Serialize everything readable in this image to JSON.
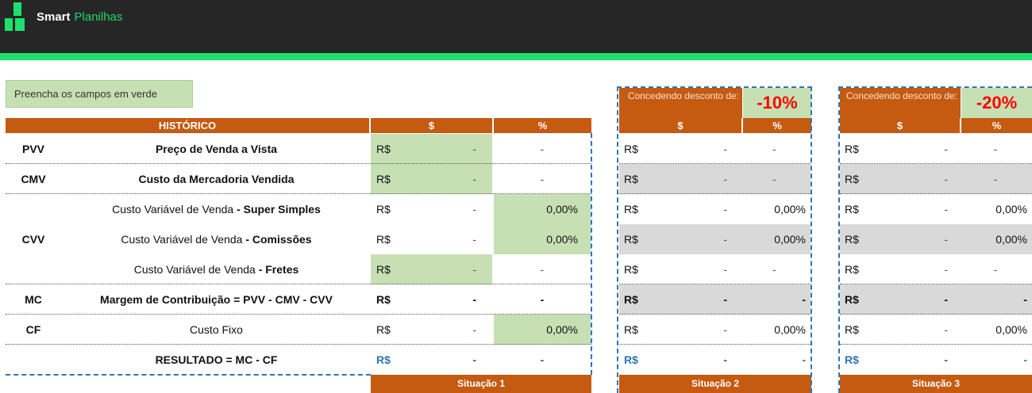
{
  "brand": {
    "name_bold": "Smart",
    "name_light": "Planilhas"
  },
  "hint": "Preencha os campos em verde",
  "history_header": {
    "title": "HISTÓRICO",
    "money": "$",
    "pct": "%"
  },
  "discounts": [
    {
      "label": "Concedendo desconto de:",
      "value": "-10%",
      "money": "$",
      "pct": "%",
      "footer": "Situação 2"
    },
    {
      "label": "Concedendo desconto de:",
      "value": "-20%",
      "money": "$",
      "pct": "%",
      "footer": "Situação 3"
    }
  ],
  "footer1": "Situação 1",
  "rows": [
    {
      "code": "PVV",
      "label": "Preço de Venda a Vista",
      "label_pre": "",
      "cur": "R$",
      "val": "-",
      "pct": "-"
    },
    {
      "code": "CMV",
      "label": "Custo da Mercadoria Vendida",
      "label_pre": "",
      "cur": "R$",
      "val": "-",
      "pct": "-"
    },
    {
      "code": "",
      "label_pre": "Custo Variável de Venda ",
      "label": "- Super Simples",
      "cur": "R$",
      "val": "-",
      "pct": "0,00%"
    },
    {
      "code": "CVV",
      "label_pre": "Custo Variável de Venda ",
      "label": "- Comissões",
      "cur": "R$",
      "val": "-",
      "pct": "0,00%"
    },
    {
      "code": "",
      "label_pre": "Custo Variável de Venda ",
      "label": "- Fretes",
      "cur": "R$",
      "val": "-",
      "pct": "-"
    },
    {
      "code": "MC",
      "label_pre": "",
      "label": "Margem de Contribuição = PVV - CMV - CVV",
      "cur": "R$",
      "val": "-",
      "pct": "-"
    },
    {
      "code": "CF",
      "label_pre": "",
      "label": "Custo Fixo",
      "cur": "R$",
      "val": "-",
      "pct": "0,00%"
    },
    {
      "code": "",
      "label_pre": "",
      "label": "RESULTADO = MC - CF",
      "cur": "R$",
      "val": "-",
      "pct": "-"
    }
  ],
  "colors": {
    "orange": "#c55a11",
    "green_input": "#c6e0b4",
    "grey_row": "#d9d9d9",
    "dash_blue": "#2e75b6",
    "accent": "#1ee06e"
  }
}
